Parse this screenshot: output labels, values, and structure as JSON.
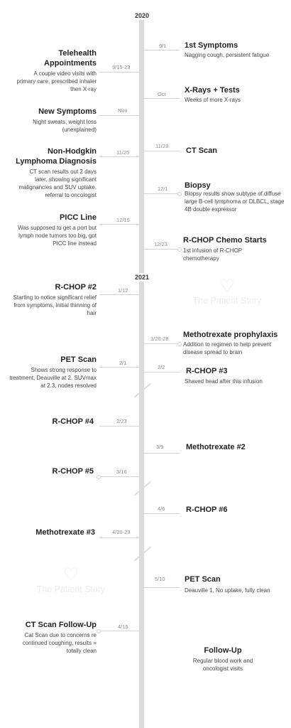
{
  "years": [
    "2020",
    "2021"
  ],
  "watermark": "The Patient Story",
  "events": {
    "first_symptoms": {
      "date": "9/1",
      "title": "1st Symptoms",
      "desc": "Nagging cough, persistent fatigue"
    },
    "telehealth": {
      "date": "9/15-23",
      "title": "Telehealth Appointments",
      "desc": "A couple video visits with primary care, prescribed inhaler then X-ray"
    },
    "xrays": {
      "date": "Oct",
      "title": "X-Rays + Tests",
      "desc": "Weeks of more X-rays"
    },
    "new_symptoms": {
      "date": "Nov",
      "title": "New Symptoms",
      "desc": "Night sweats, weight loss (unexplained)"
    },
    "ct_scan": {
      "date": "11/23",
      "title": "CT Scan",
      "desc": ""
    },
    "nhl_diagnosis": {
      "date": "11/25",
      "title": "Non-Hodgkin Lymphoma Diagnosis",
      "desc": "CT scan results out 2 days later, showing significant malignancies and SUV uptake, referral to oncologist"
    },
    "biopsy": {
      "date": "12/1",
      "title": "Biopsy",
      "desc": "Biopsy results show subtype of diffuse large B-cell lymphoma or DLBCL, stage 4B double expressor"
    },
    "picc_line": {
      "date": "12/15",
      "title": "PICC Line",
      "desc": "Was supposed to get a port but lymph node tumors too big, got PICC line instead"
    },
    "rchop_start": {
      "date": "12/23",
      "title": "R-CHOP Chemo Starts",
      "desc": "1st infusion of R-CHOP chemotherapy"
    },
    "rchop2": {
      "date": "1/12",
      "title": "R-CHOP #2",
      "desc": "Starting to notice significant relief from symptoms, initial thinning of hair"
    },
    "methotrexate_prophylaxis": {
      "date": "1/26-28",
      "title": "Methotrexate prophylaxis",
      "desc": "Addition to regimen to help prevent disease spread to brain"
    },
    "pet_scan1": {
      "date": "2/1",
      "title": "PET Scan",
      "desc": "Shows strong response to treatment, Deauville at 2, SUVmax at 2.3, nodes resolved"
    },
    "rchop3": {
      "date": "2/2",
      "title": "R-CHOP #3",
      "desc": "Shaved head after this infusion"
    },
    "rchop4": {
      "date": "2/23",
      "title": "R-CHOP #4",
      "desc": ""
    },
    "methotrexate2": {
      "date": "3/9",
      "title": "Methotrexate #2",
      "desc": ""
    },
    "rchop5": {
      "date": "3/16",
      "title": "R-CHOP #5",
      "desc": ""
    },
    "rchop6": {
      "date": "4/6",
      "title": "R-CHOP #6",
      "desc": ""
    },
    "methotrexate3": {
      "date": "4/20-23",
      "title": "Methotrexate #3",
      "desc": ""
    },
    "pet_scan2": {
      "date": "5/10",
      "title": "PET Scan",
      "desc": "Deauville 1, No uptake, fully clean"
    },
    "ct_followup": {
      "date": "4/15",
      "title": "CT Scan Follow-Up",
      "desc": "Cat Scan due to concerns re continued coughing, results = totally clean"
    },
    "followup": {
      "date": "",
      "title": "Follow-Up",
      "desc": "Regular blood work and oncologist visits"
    }
  }
}
